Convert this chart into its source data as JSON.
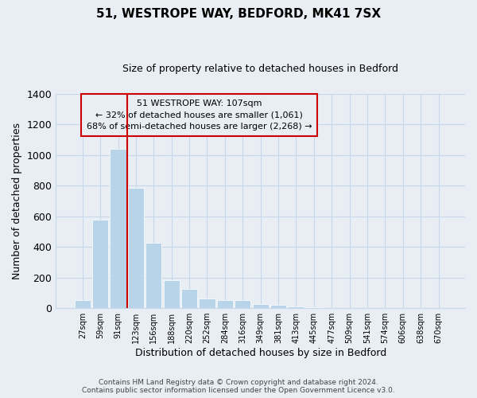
{
  "title": "51, WESTROPE WAY, BEDFORD, MK41 7SX",
  "subtitle": "Size of property relative to detached houses in Bedford",
  "xlabel": "Distribution of detached houses by size in Bedford",
  "ylabel": "Number of detached properties",
  "bar_color": "#b8d4e8",
  "bar_edge_color": "#b8d4e8",
  "categories": [
    "27sqm",
    "59sqm",
    "91sqm",
    "123sqm",
    "156sqm",
    "188sqm",
    "220sqm",
    "252sqm",
    "284sqm",
    "316sqm",
    "349sqm",
    "381sqm",
    "413sqm",
    "445sqm",
    "477sqm",
    "509sqm",
    "541sqm",
    "574sqm",
    "606sqm",
    "638sqm",
    "670sqm"
  ],
  "values": [
    50,
    575,
    1040,
    785,
    425,
    180,
    125,
    65,
    55,
    50,
    25,
    20,
    10,
    5,
    2,
    0,
    0,
    0,
    0,
    0,
    0
  ],
  "ylim": [
    0,
    1400
  ],
  "yticks": [
    0,
    200,
    400,
    600,
    800,
    1000,
    1200,
    1400
  ],
  "annotation_line1": "51 WESTROPE WAY: 107sqm",
  "annotation_line2": "← 32% of detached houses are smaller (1,061)",
  "annotation_line3": "68% of semi-detached houses are larger (2,268) →",
  "vline_x_index": 2,
  "vline_color": "#cc0000",
  "box_edge_color": "#cc0000",
  "footer_line1": "Contains HM Land Registry data © Crown copyright and database right 2024.",
  "footer_line2": "Contains public sector information licensed under the Open Government Licence v3.0.",
  "background_color": "#e8eef4",
  "plot_background": "#e8eef4",
  "grid_color": "#c8d8e8"
}
